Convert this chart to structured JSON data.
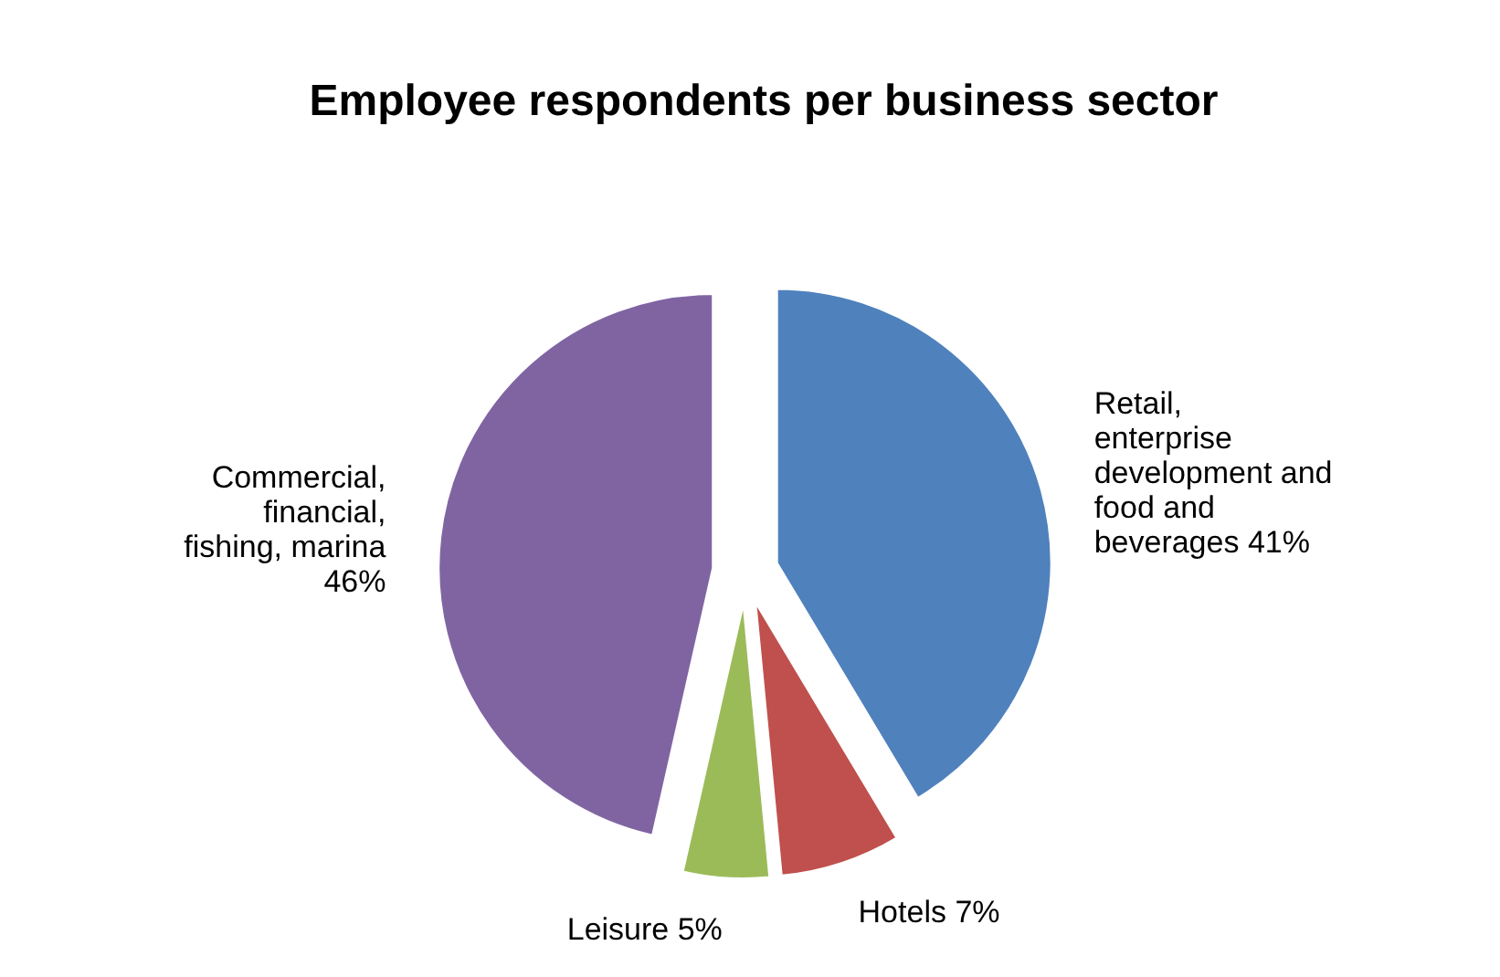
{
  "chart_data": {
    "type": "pie",
    "title": "Employee respondents per business sector",
    "categories": [
      "Retail, enterprise development and food and beverages",
      "Hotels",
      "Leisure",
      "Commercial, financial, fishing, marina"
    ],
    "values": [
      41,
      7,
      5,
      46
    ],
    "value_labels": [
      "41%",
      "7%",
      "5%",
      "46%"
    ],
    "colors": [
      "#4f81bd",
      "#c0504d",
      "#9bbb59",
      "#8064a2"
    ]
  }
}
